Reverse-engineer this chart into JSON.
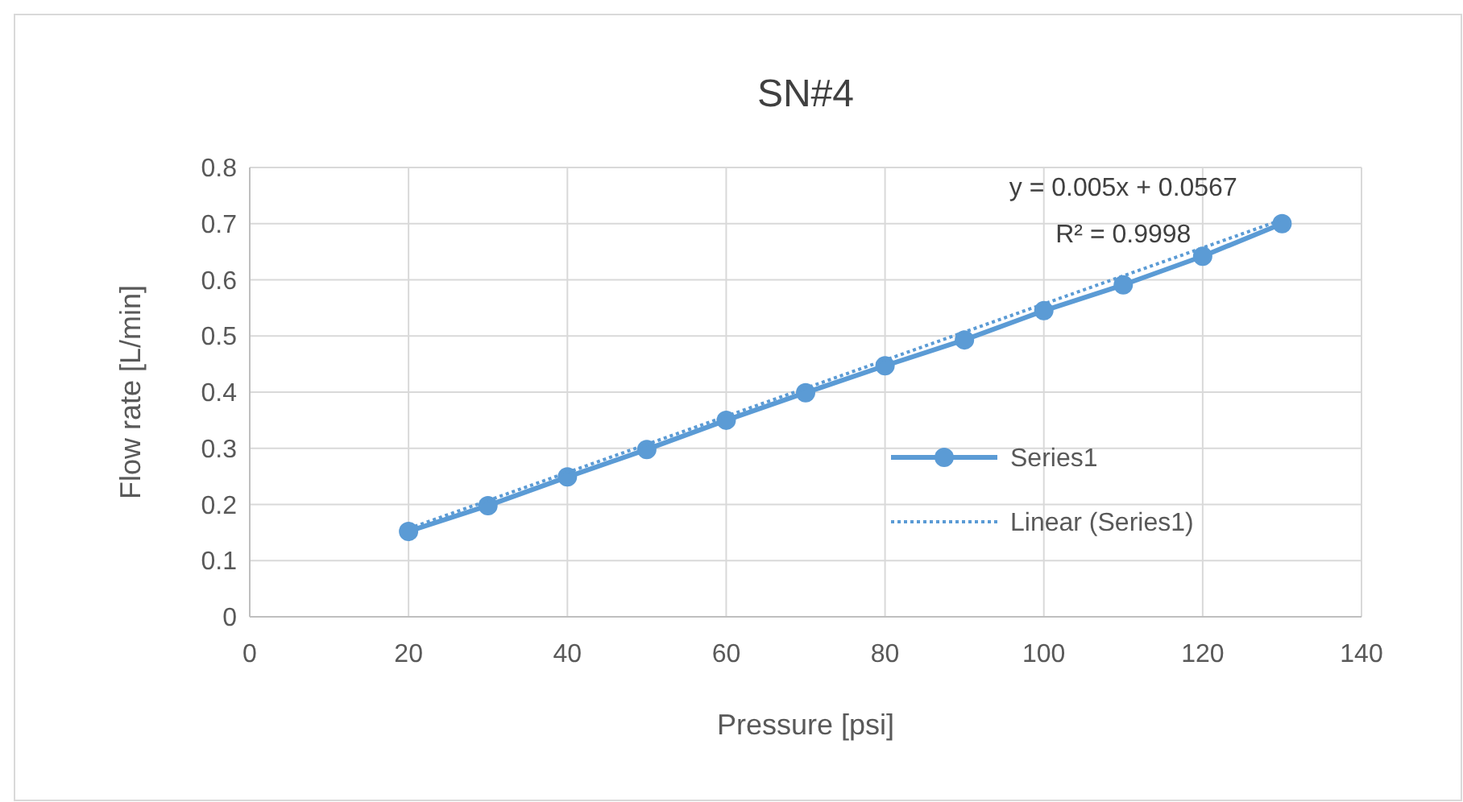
{
  "chart_data": {
    "type": "line",
    "title": "SN#4",
    "xlabel": "Pressure [psi]",
    "ylabel": "Flow rate [L/min]",
    "x": [
      20,
      30,
      40,
      50,
      60,
      70,
      80,
      90,
      100,
      110,
      120,
      130
    ],
    "series": [
      {
        "name": "Series1",
        "color": "#5b9bd5",
        "marker": "circle",
        "line_style": "solid",
        "values": [
          0.152,
          0.198,
          0.249,
          0.298,
          0.35,
          0.399,
          0.447,
          0.493,
          0.545,
          0.591,
          0.642,
          0.7
        ]
      },
      {
        "name": "Linear (Series1)",
        "color": "#5b9bd5",
        "marker": "none",
        "line_style": "dotted",
        "x": [
          20,
          130
        ],
        "values": [
          0.157,
          0.707
        ]
      }
    ],
    "xlim": [
      0,
      140
    ],
    "xticks": [
      0,
      20,
      40,
      60,
      80,
      100,
      120,
      140
    ],
    "ylim": [
      0,
      0.8
    ],
    "yticks": [
      0,
      0.1,
      0.2,
      0.3,
      0.4,
      0.5,
      0.6,
      0.7,
      0.8
    ],
    "grid": true,
    "legend": "right",
    "annotations": [
      "y = 0.005x + 0.0567",
      "R² = 0.9998"
    ]
  }
}
